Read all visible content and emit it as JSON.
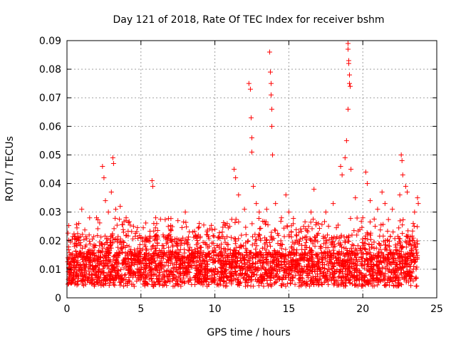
{
  "chart_data": {
    "type": "scatter",
    "title": "Day 121 of 2018, Rate Of TEC Index for receiver bshm",
    "xlabel": "GPS time / hours",
    "ylabel": "ROTI / TECUs",
    "xlim": [
      0,
      25
    ],
    "ylim": [
      0,
      0.09
    ],
    "xticks": [
      "0",
      "5",
      "10",
      "15",
      "20",
      "25"
    ],
    "yticks": [
      "0",
      "0.01",
      "0.02",
      "0.03",
      "0.04",
      "0.05",
      "0.06",
      "0.07",
      "0.08",
      "0.09"
    ],
    "grid": true,
    "marker": "+",
    "color": "#ff0000",
    "series": [
      {
        "name": "ROTI",
        "points": [
          [
            0.2,
            0.012
          ],
          [
            0.5,
            0.018
          ],
          [
            0.8,
            0.026
          ],
          [
            1.0,
            0.031
          ],
          [
            1.5,
            0.022
          ],
          [
            2.0,
            0.028
          ],
          [
            2.4,
            0.046
          ],
          [
            2.5,
            0.042
          ],
          [
            2.6,
            0.034
          ],
          [
            2.8,
            0.03
          ],
          [
            3.0,
            0.037
          ],
          [
            3.1,
            0.049
          ],
          [
            3.15,
            0.047
          ],
          [
            3.3,
            0.031
          ],
          [
            3.6,
            0.032
          ],
          [
            4.0,
            0.028
          ],
          [
            4.5,
            0.025
          ],
          [
            5.0,
            0.021
          ],
          [
            5.5,
            0.02
          ],
          [
            5.75,
            0.041
          ],
          [
            5.8,
            0.039
          ],
          [
            6.0,
            0.028
          ],
          [
            6.5,
            0.022
          ],
          [
            7.0,
            0.024
          ],
          [
            7.5,
            0.027
          ],
          [
            8.0,
            0.03
          ],
          [
            8.5,
            0.023
          ],
          [
            9.0,
            0.021
          ],
          [
            9.5,
            0.022
          ],
          [
            10.0,
            0.024
          ],
          [
            10.5,
            0.023
          ],
          [
            11.0,
            0.025
          ],
          [
            11.3,
            0.045
          ],
          [
            11.4,
            0.042
          ],
          [
            11.6,
            0.036
          ],
          [
            12.0,
            0.031
          ],
          [
            12.3,
            0.075
          ],
          [
            12.4,
            0.073
          ],
          [
            12.45,
            0.063
          ],
          [
            12.5,
            0.056
          ],
          [
            12.5,
            0.051
          ],
          [
            12.6,
            0.039
          ],
          [
            12.8,
            0.033
          ],
          [
            13.0,
            0.03
          ],
          [
            13.5,
            0.031
          ],
          [
            13.7,
            0.086
          ],
          [
            13.75,
            0.079
          ],
          [
            13.8,
            0.075
          ],
          [
            13.8,
            0.071
          ],
          [
            13.85,
            0.066
          ],
          [
            13.85,
            0.06
          ],
          [
            13.9,
            0.05
          ],
          [
            14.1,
            0.033
          ],
          [
            14.5,
            0.028
          ],
          [
            14.8,
            0.036
          ],
          [
            15.0,
            0.03
          ],
          [
            15.5,
            0.022
          ],
          [
            16.0,
            0.025
          ],
          [
            16.5,
            0.03
          ],
          [
            16.7,
            0.038
          ],
          [
            17.0,
            0.026
          ],
          [
            17.5,
            0.03
          ],
          [
            18.0,
            0.033
          ],
          [
            18.5,
            0.046
          ],
          [
            18.6,
            0.043
          ],
          [
            18.8,
            0.049
          ],
          [
            18.9,
            0.055
          ],
          [
            19.0,
            0.089
          ],
          [
            19.0,
            0.087
          ],
          [
            19.05,
            0.083
          ],
          [
            19.05,
            0.082
          ],
          [
            19.1,
            0.078
          ],
          [
            19.1,
            0.075
          ],
          [
            19.15,
            0.074
          ],
          [
            19.0,
            0.066
          ],
          [
            19.2,
            0.045
          ],
          [
            19.5,
            0.035
          ],
          [
            20.0,
            0.028
          ],
          [
            20.2,
            0.044
          ],
          [
            20.3,
            0.04
          ],
          [
            20.5,
            0.034
          ],
          [
            21.0,
            0.031
          ],
          [
            21.3,
            0.037
          ],
          [
            21.5,
            0.033
          ],
          [
            22.0,
            0.031
          ],
          [
            22.5,
            0.036
          ],
          [
            22.6,
            0.05
          ],
          [
            22.65,
            0.048
          ],
          [
            22.7,
            0.043
          ],
          [
            22.9,
            0.039
          ],
          [
            23.0,
            0.037
          ],
          [
            23.5,
            0.03
          ],
          [
            23.7,
            0.035
          ],
          [
            23.75,
            0.033
          ]
        ]
      }
    ]
  }
}
